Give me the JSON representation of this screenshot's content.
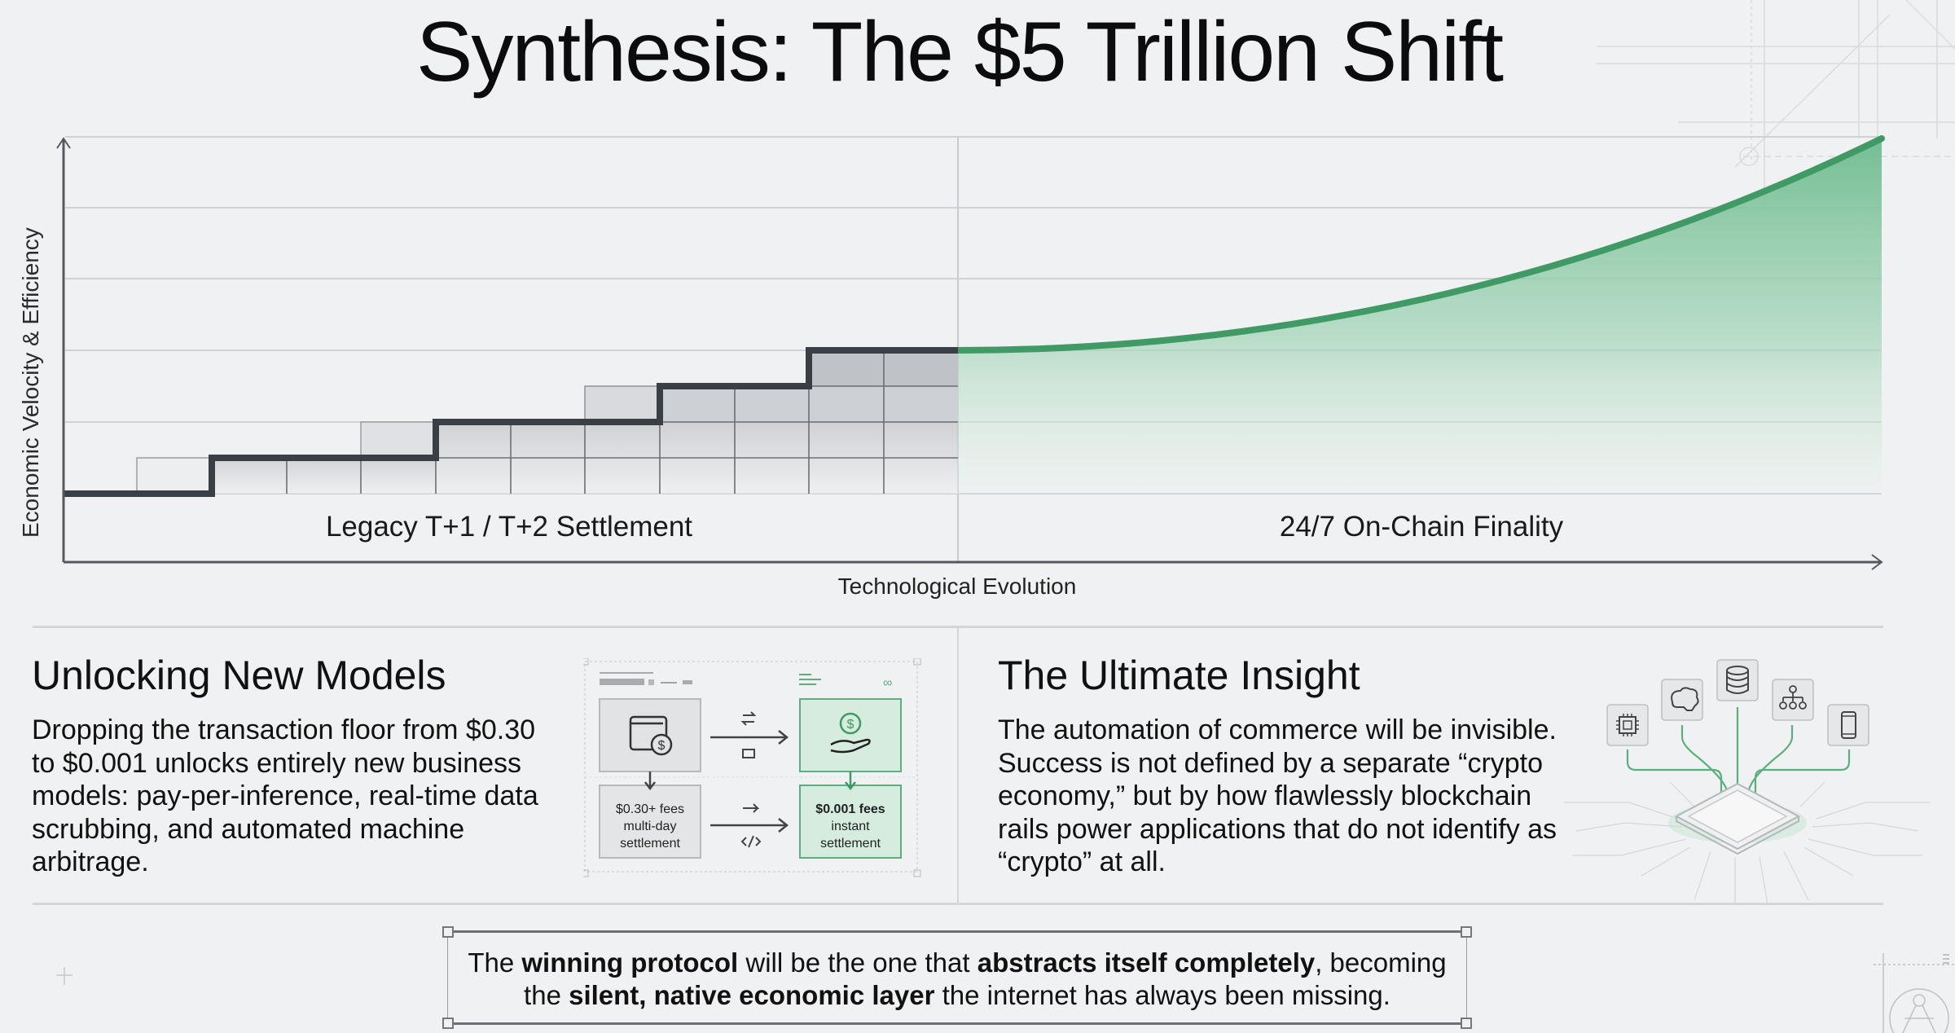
{
  "page": {
    "title": "Synthesis: The $5 Trillion Shift"
  },
  "chart_data": {
    "type": "area",
    "title": "Synthesis: The $5 Trillion Shift",
    "xlabel": "Technological Evolution",
    "ylabel": "Economic Velocity & Efficiency",
    "grid": true,
    "axis_ticks": "none (qualitative axes)",
    "regions": [
      {
        "name": "Legacy T+1 / T+2 Settlement",
        "style": "step",
        "color": "#3a3f45"
      },
      {
        "name": "24/7 On-Chain Finality",
        "style": "exponential-area",
        "color": "#3f9a66"
      }
    ],
    "series": [
      {
        "name": "Legacy T+1 / T+2 Settlement",
        "note": "staircase; relative units where 0 = baseline gridline, 1 = one gridline",
        "x": [
          0,
          2,
          5,
          8,
          10,
          12
        ],
        "values": [
          0,
          0.5,
          1,
          1.5,
          2,
          2
        ]
      },
      {
        "name": "24/7 On-Chain Finality",
        "note": "exponential growth curve starting at legacy peak",
        "x": [
          12,
          14,
          16,
          18,
          20,
          22,
          24
        ],
        "values": [
          2,
          2.1,
          2.4,
          2.8,
          3.4,
          4.1,
          5.0
        ]
      }
    ],
    "ylim": [
      0,
      5
    ],
    "xlim": [
      0,
      24
    ]
  },
  "chart": {
    "ylabel": "Economic Velocity & Efficiency",
    "xlabel": "Technological Evolution",
    "left_region_label": "Legacy T+1 / T+2 Settlement",
    "right_region_label": "24/7 On-Chain Finality"
  },
  "left_section": {
    "heading": "Unlocking New Models",
    "body": "Dropping the transaction floor from $0.30 to $0.001 unlocks entirely new business models: pay-per-inference, real-time data scrubbing, and automated machine arbitrage."
  },
  "diagram": {
    "legacy_box_icon": "wallet-dollar-icon",
    "modern_box_icon": "hand-coin-icon",
    "legacy_fee_lines": [
      "$0.30+ fees",
      "multi-day",
      "settlement"
    ],
    "modern_fee_lines": [
      "$0.001 fees",
      "instant",
      "settlement"
    ],
    "arrow_icons": [
      "swap-icon",
      "transfer-icon",
      "arrow-right-icon",
      "code-icon"
    ],
    "accent": "#3f9a66"
  },
  "right_section": {
    "heading": "The Ultimate Insight",
    "body": "The automation of commerce will be invisible. Success is not defined by a separate “crypto economy,” but by how flawlessly blockchain rails power applications that do not identify as “crypto” at all.",
    "icons": [
      "cpu-icon",
      "brain-icon",
      "database-icon",
      "network-hierarchy-icon",
      "smartphone-icon"
    ]
  },
  "quote": {
    "line1_parts": [
      {
        "t": "The ",
        "b": false
      },
      {
        "t": "winning protocol",
        "b": true
      },
      {
        "t": " will be the one that ",
        "b": false
      },
      {
        "t": "abstracts itself completely",
        "b": true
      },
      {
        "t": ", becoming",
        "b": false
      }
    ],
    "line2_parts": [
      {
        "t": "the ",
        "b": false
      },
      {
        "t": "silent, native economic layer",
        "b": true
      },
      {
        "t": " the internet has always been missing.",
        "b": false
      }
    ]
  },
  "colors": {
    "background": "#f0f1f2",
    "green": "#3f9a66",
    "green_fill": "#7cc49c",
    "step_line": "#3a3f45",
    "grid": "#cfd2d6"
  }
}
